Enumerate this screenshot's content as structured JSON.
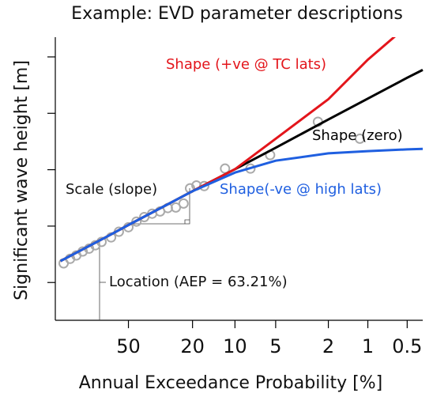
{
  "chart_data": {
    "type": "line",
    "title": "Example: EVD parameter descriptions",
    "x_label": "Annual Exceedance Probability [%]",
    "y_label": "Significant wave height [m]",
    "x_scale": "gumbel",
    "x": [
      90,
      80,
      63.21,
      50,
      30,
      20,
      10,
      5,
      2,
      1,
      0.5,
      0.38
    ],
    "series": [
      {
        "name": "Shape (+ve @ TC lats)",
        "color": "#e3151b",
        "values": [
          1.38,
          1.57,
          1.82,
          2.02,
          2.37,
          2.62,
          3.01,
          3.55,
          4.25,
          4.95,
          5.55,
          5.8
        ]
      },
      {
        "name": "Shape (zero)",
        "color": "#000000",
        "values": [
          1.38,
          1.57,
          1.82,
          2.02,
          2.37,
          2.62,
          3.01,
          3.39,
          3.89,
          4.26,
          4.63,
          4.77
        ]
      },
      {
        "name": "Shape(-ve @ high lats)",
        "color": "#1f5fe0",
        "values": [
          1.38,
          1.57,
          1.82,
          2.02,
          2.37,
          2.62,
          2.95,
          3.16,
          3.29,
          3.33,
          3.36,
          3.37
        ]
      }
    ],
    "points": {
      "color": "#aaaaaa",
      "x": [
        88.7,
        85.7,
        82.5,
        78.9,
        75.1,
        71.2,
        67.2,
        61.0,
        56.0,
        50,
        45.2,
        40.8,
        36.6,
        32.7,
        29.2,
        25.9,
        23.0,
        20.8,
        18.8,
        16.6,
        11.8,
        7.7,
        5.5,
        2.4,
        1.15
      ],
      "values": [
        1.34,
        1.42,
        1.48,
        1.55,
        1.6,
        1.66,
        1.72,
        1.8,
        1.9,
        1.98,
        2.08,
        2.16,
        2.22,
        2.26,
        2.32,
        2.33,
        2.4,
        2.67,
        2.72,
        2.71,
        3.02,
        3.02,
        3.26,
        3.85,
        3.55
      ]
    },
    "annotations": [
      "Scale (slope)",
      "Location (AEP = 63.21%)"
    ],
    "xlim": [
      92,
      0.38
    ],
    "xticks": [
      50,
      20,
      10,
      5,
      2,
      1,
      0.5
    ],
    "ylim": [
      0.33,
      5.35
    ],
    "yticks": [
      1,
      2,
      3,
      4,
      5
    ]
  }
}
